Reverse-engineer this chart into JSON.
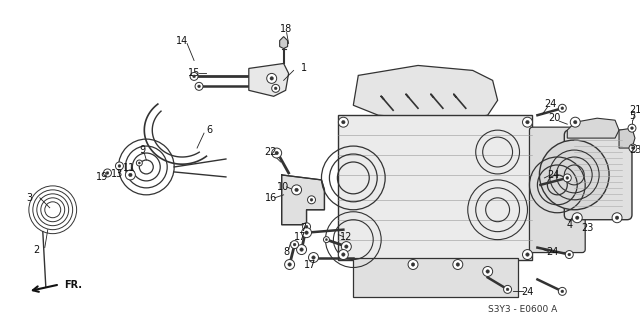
{
  "background_color": "#ffffff",
  "diagram_code": "S3Y3 - E0600 A",
  "figsize": [
    6.4,
    3.2
  ],
  "dpi": 100,
  "label_fs": 7.0,
  "lc": "#222222",
  "ec": "#333333"
}
